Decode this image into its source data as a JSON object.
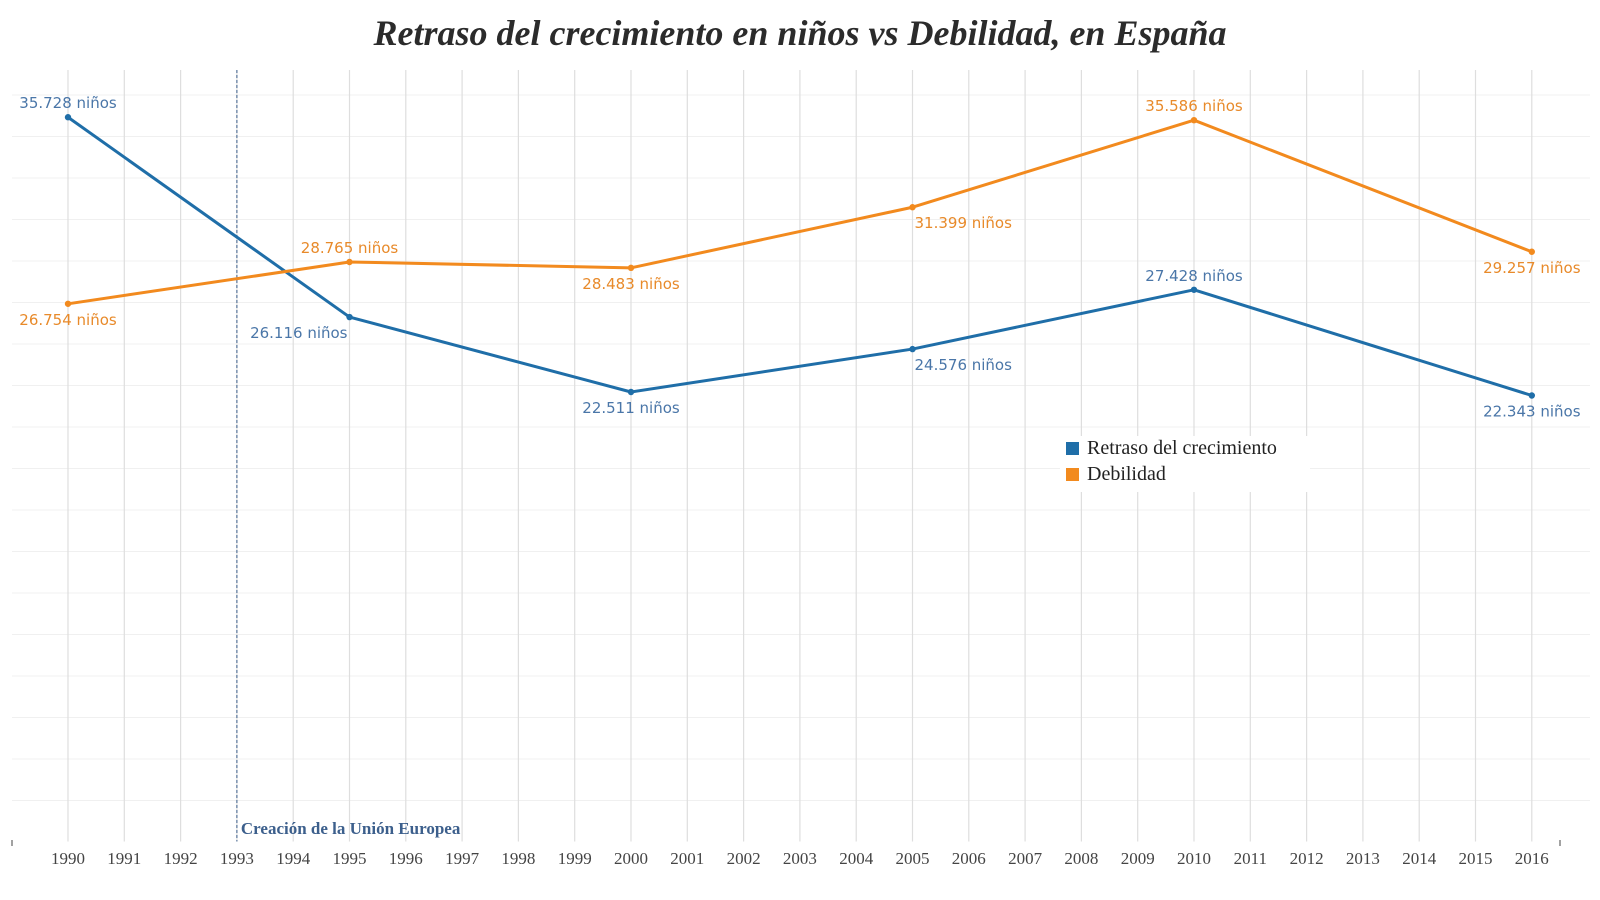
{
  "chart_data": {
    "type": "line",
    "title": "Retraso del crecimiento en niños vs Debilidad, en España",
    "xlabel": "",
    "ylabel": "",
    "x": [
      1990,
      1995,
      2000,
      2005,
      2010,
      2016
    ],
    "x_ticks": [
      "1990",
      "1991",
      "1992",
      "1993",
      "1994",
      "1995",
      "1996",
      "1997",
      "1998",
      "1999",
      "2000",
      "2001",
      "2002",
      "2003",
      "2004",
      "2005",
      "2006",
      "2007",
      "2008",
      "2009",
      "2010",
      "2011",
      "2012",
      "2013",
      "2014",
      "2015",
      "2016"
    ],
    "xlim": [
      1989,
      2017
    ],
    "ylim": [
      0,
      38000
    ],
    "grid": true,
    "legend_position": "center-right",
    "series": [
      {
        "name": "Retraso del crecimiento",
        "color": "#1f6ea8",
        "label_color": "#4a76a8",
        "values": [
          35728,
          26116,
          22511,
          24576,
          27428,
          22343
        ],
        "labels": [
          "35.728 niños",
          "26.116 niños",
          "22.511 niños",
          "24.576 niños",
          "27.428 niños",
          "22.343 niños"
        ],
        "label_positions": [
          "above",
          "below-left",
          "below",
          "below-right",
          "above",
          "below"
        ]
      },
      {
        "name": "Debilidad",
        "color": "#f28a1e",
        "label_color": "#e88a2a",
        "values": [
          26754,
          28765,
          28483,
          31399,
          35586,
          29257
        ],
        "labels": [
          "26.754 niños",
          "28.765 niños",
          "28.483 niños",
          "31.399 niños",
          "35.586 niños",
          "29.257 niños"
        ],
        "label_positions": [
          "below",
          "above",
          "below",
          "below-right",
          "above",
          "below"
        ]
      }
    ],
    "annotations": [
      {
        "x": 1993,
        "text": "Creación de la Unión Europea",
        "color": "#3c5f8c"
      }
    ]
  }
}
